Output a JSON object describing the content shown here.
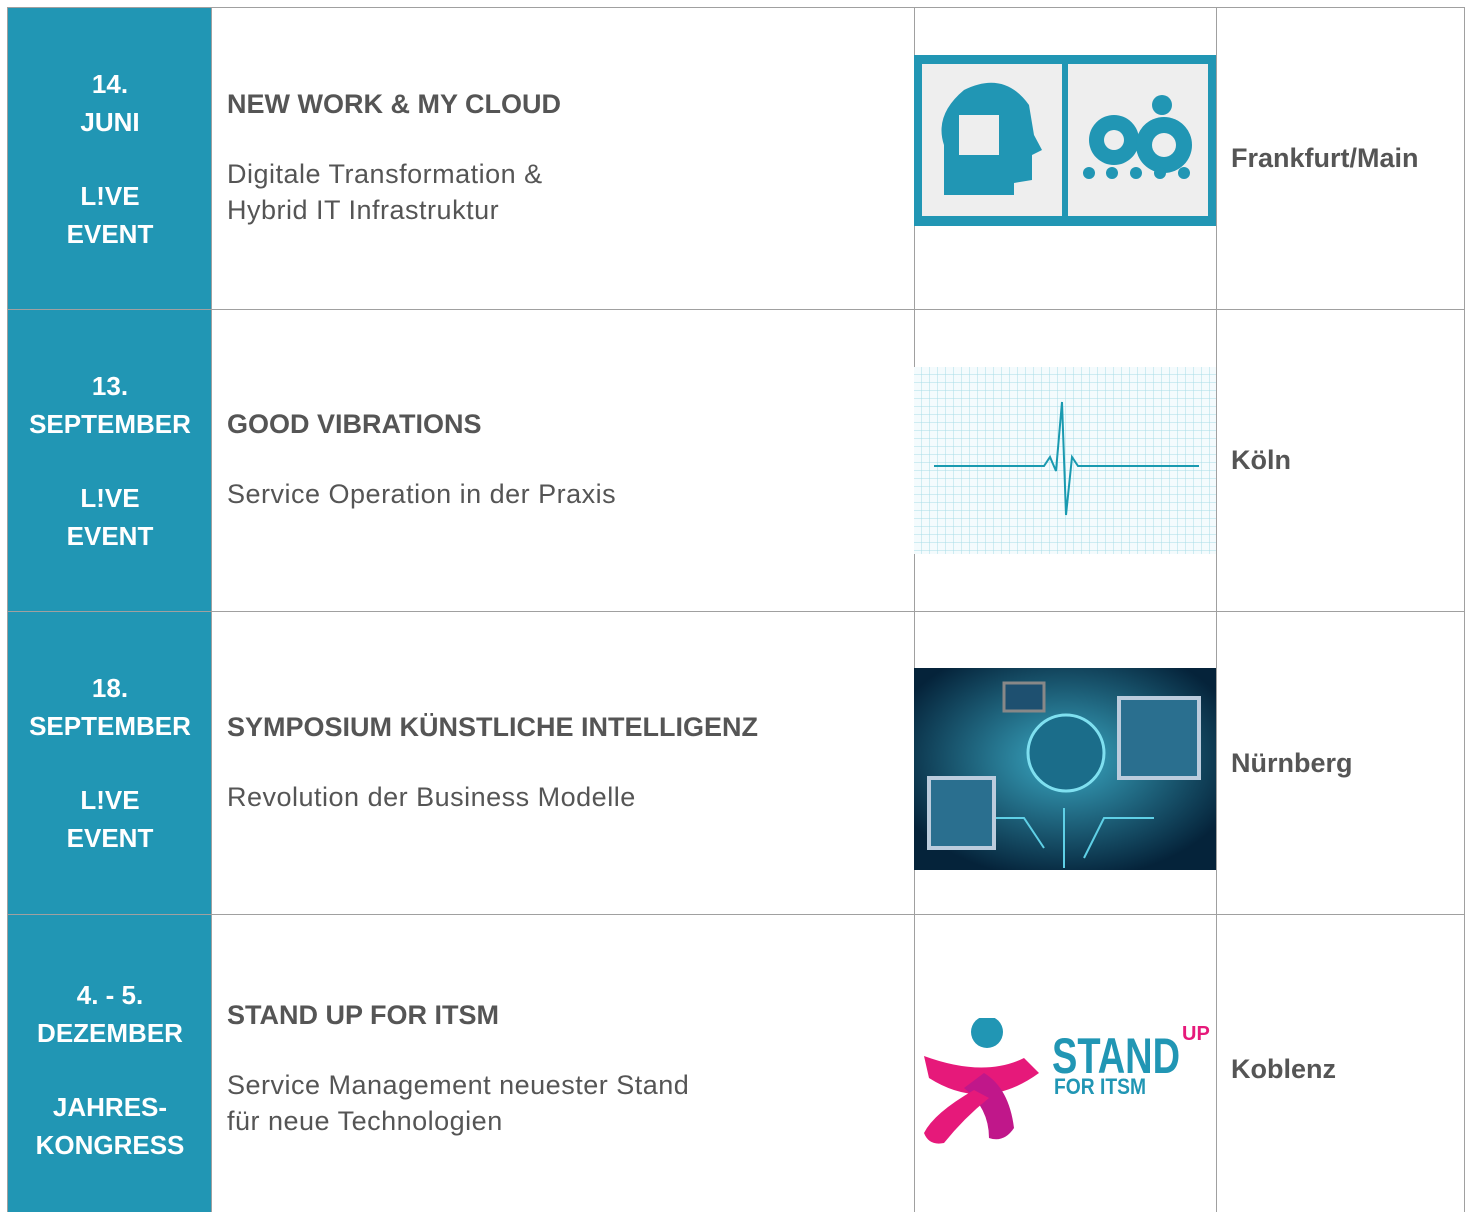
{
  "rows": [
    {
      "date": [
        "14.",
        "JUNI"
      ],
      "kind": [
        "L!VE",
        "EVENT"
      ],
      "title": "NEW WORK & MY CLOUD",
      "description": [
        "Digitale Transformation &",
        "Hybrid IT Infrastruktur"
      ],
      "location": "Frankfurt/Main"
    },
    {
      "date": [
        "13.",
        "SEPTEMBER"
      ],
      "kind": [
        "L!VE",
        "EVENT"
      ],
      "title": "GOOD VIBRATIONS",
      "description": [
        "Service Operation in der Praxis"
      ],
      "location": "Köln"
    },
    {
      "date": [
        "18.",
        "SEPTEMBER"
      ],
      "kind": [
        "L!VE",
        "EVENT"
      ],
      "title": "SYMPOSIUM KÜNSTLICHE INTELLIGENZ",
      "description": [
        "Revolution der Business Modelle"
      ],
      "location": "Nürnberg"
    },
    {
      "date": [
        "4. - 5.",
        "DEZEMBER"
      ],
      "kind": [
        "JAHRES-",
        "KONGRESS"
      ],
      "title": "STAND UP FOR ITSM",
      "description": [
        "Service Management neuester Stand",
        "für neue Technologien"
      ],
      "location": "Koblenz"
    }
  ],
  "logo": {
    "main": "STAND",
    "sup": "UP",
    "sub": "FOR ITSM"
  }
}
